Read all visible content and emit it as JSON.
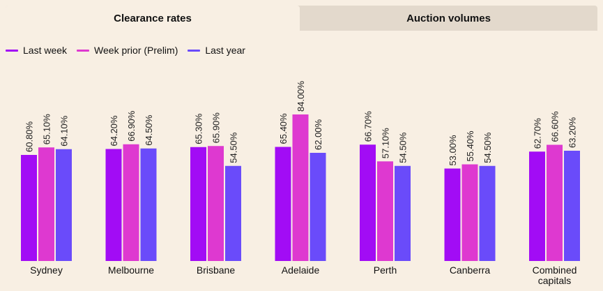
{
  "tabs": [
    {
      "label": "Clearance rates",
      "active": true
    },
    {
      "label": "Auction volumes",
      "active": false
    }
  ],
  "chart_data": {
    "type": "bar",
    "title": "Clearance rates",
    "categories": [
      "Sydney",
      "Melbourne",
      "Brisbane",
      "Adelaide",
      "Perth",
      "Canberra",
      "Combined capitals"
    ],
    "category_lines": [
      [
        "Sydney"
      ],
      [
        "Melbourne"
      ],
      [
        "Brisbane"
      ],
      [
        "Adelaide"
      ],
      [
        "Perth"
      ],
      [
        "Canberra"
      ],
      [
        "Combined",
        "capitals"
      ]
    ],
    "series": [
      {
        "name": "Last week",
        "color": "#a20cf5",
        "values": [
          60.8,
          64.2,
          65.3,
          65.4,
          66.7,
          53.0,
          62.7
        ]
      },
      {
        "name": "Week prior (Prelim)",
        "color": "#de39d0",
        "values": [
          65.1,
          66.9,
          65.9,
          84.0,
          57.1,
          55.4,
          66.6
        ]
      },
      {
        "name": "Last year",
        "color": "#6a4bfa",
        "values": [
          64.1,
          64.5,
          54.5,
          62.0,
          54.5,
          54.5,
          63.2
        ]
      }
    ],
    "value_suffix": "%",
    "ylim": [
      0,
      100
    ],
    "grid": false,
    "legend": "top-left",
    "xlabel": "",
    "ylabel": ""
  }
}
